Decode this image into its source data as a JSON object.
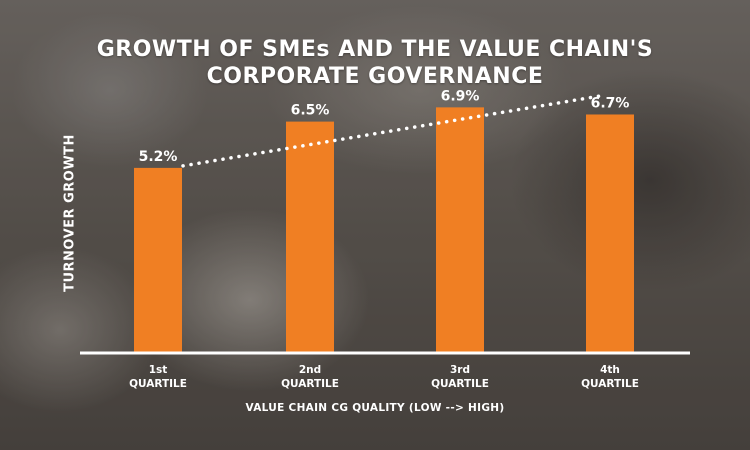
{
  "chart_data": {
    "type": "bar",
    "title_line1": "GROWTH OF SMEs AND THE VALUE CHAIN'S",
    "title_line2": "CORPORATE GOVERNANCE",
    "xlabel": "VALUE CHAIN CG QUALITY (LOW --> HIGH)",
    "ylabel": "TURNOVER GROWTH",
    "categories": [
      "1st\nQUARTILE",
      "2nd\nQUARTILE",
      "3rd\nQUARTILE",
      "4th\nQUARTILE"
    ],
    "values": [
      5.2,
      6.5,
      6.9,
      6.7
    ],
    "data_labels": [
      "5.2%",
      "6.5%",
      "6.9%",
      "6.7%"
    ],
    "trendline": "dotted",
    "grid": false,
    "legend": "none",
    "bar_color": "#f07f23",
    "text_color": "#ffffff"
  }
}
